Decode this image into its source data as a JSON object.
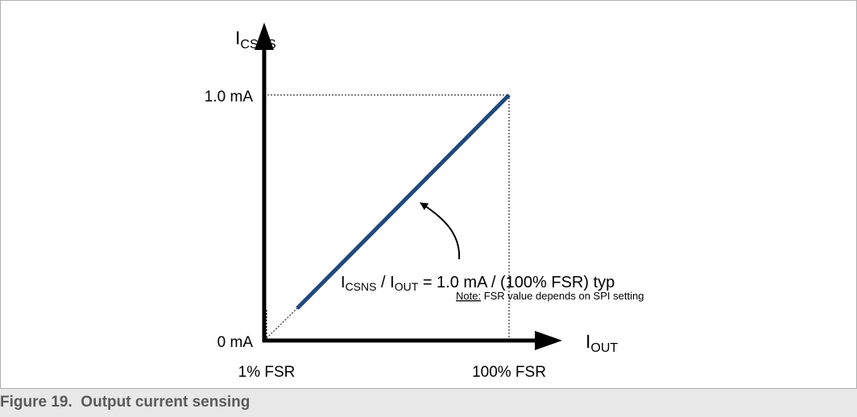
{
  "caption": "Figure 19.  Output current sensing",
  "colors": {
    "line": "#1f497d",
    "axis": "#000000",
    "caption_bg": "#e8e8e8",
    "caption_text": "#5a5a5a",
    "frame_border": "#b0b0b0"
  },
  "chart_data": {
    "type": "line",
    "title": "",
    "y_axis_label": {
      "main": "I",
      "sub": "CSNS"
    },
    "x_axis_label": {
      "main": "I",
      "sub": "OUT"
    },
    "y_ticks": [
      "0 mA",
      "1.0 mA"
    ],
    "x_ticks": [
      "1% FSR",
      "100% FSR"
    ],
    "x_range_percent_fsr": [
      0,
      100
    ],
    "y_range_ma": [
      0,
      1.0
    ],
    "series": [
      {
        "x_percent_fsr": [
          1,
          100
        ],
        "y_ma": [
          0.01,
          1.0
        ]
      }
    ],
    "extrapolation": {
      "x_percent_fsr": [
        0,
        1
      ],
      "y_ma": [
        0,
        0.01
      ],
      "style": "dotted"
    },
    "guides": [
      {
        "type": "horizontal",
        "y_ma": 1.0,
        "from_x_percent_fsr": 0,
        "to_x_percent_fsr": 100,
        "style": "dotted"
      },
      {
        "type": "vertical",
        "x_percent_fsr": 100,
        "from_y_ma": 0,
        "to_y_ma": 1.0,
        "style": "dotted"
      },
      {
        "type": "vertical",
        "x_percent_fsr": 1,
        "from_y_ma": 0,
        "to_y_ma": 0.01,
        "style": "dotted"
      }
    ],
    "annotation": {
      "parts": [
        {
          "text": "I",
          "sub": false
        },
        {
          "text": "CSNS",
          "sub": true
        },
        {
          "text": " / I",
          "sub": false
        },
        {
          "text": "OUT",
          "sub": true
        },
        {
          "text": " = 1.0 mA / (100% FSR) typ",
          "sub": false
        }
      ],
      "note_label": "Note:",
      "note_text": " FSR value depends on SPI setting"
    },
    "grid": false,
    "legend": "none"
  }
}
